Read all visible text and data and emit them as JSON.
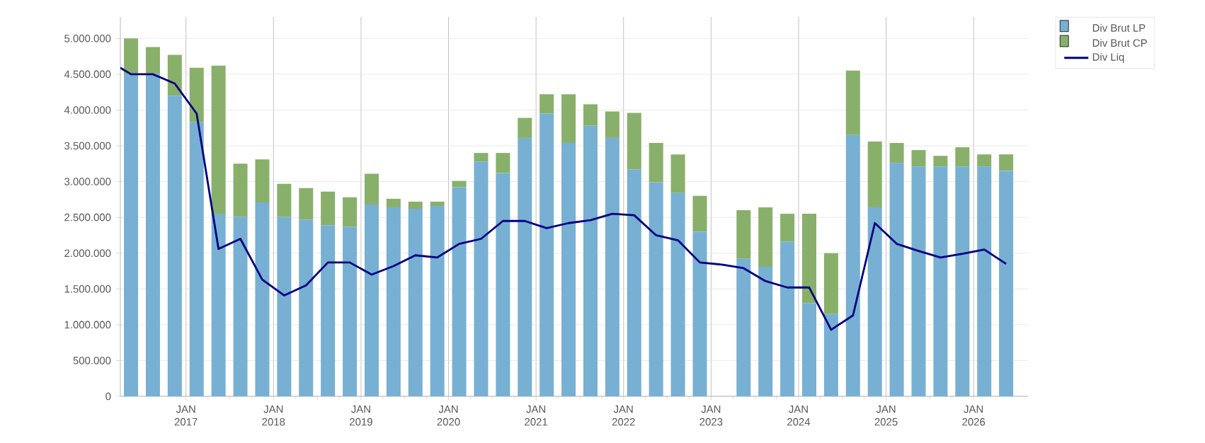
{
  "chart_data": {
    "type": "bar",
    "stacked": true,
    "grid": true,
    "legend": "top right",
    "xlim": [
      "2016-04-01",
      "2026-08-15"
    ],
    "xticks": [
      {
        "value": "2017-01-01",
        "label": "JAN 2017"
      },
      {
        "value": "2018-01-01",
        "label": "JAN 2018"
      },
      {
        "value": "2019-01-01",
        "label": "JAN 2019"
      },
      {
        "value": "2020-01-01",
        "label": "JAN 2020"
      },
      {
        "value": "2021-01-01",
        "label": "JAN 2021"
      },
      {
        "value": "2022-01-01",
        "label": "JAN 2022"
      },
      {
        "value": "2023-01-01",
        "label": "JAN 2023"
      },
      {
        "value": "2024-01-01",
        "label": "JAN 2024"
      },
      {
        "value": "2025-01-01",
        "label": "JAN 2025"
      },
      {
        "value": "2026-01-01",
        "label": "JAN 2026"
      }
    ],
    "ylim": [
      0,
      5300000
    ],
    "yticks": [
      {
        "value": 0,
        "label": "0"
      },
      {
        "value": 500000,
        "label": "500.000"
      },
      {
        "value": 1000000,
        "label": "1.000.000"
      },
      {
        "value": 1500000,
        "label": "1.500.000"
      },
      {
        "value": 2000000,
        "label": "2.000.000"
      },
      {
        "value": 2500000,
        "label": "2.500.000"
      },
      {
        "value": 3000000,
        "label": "3.000.000"
      },
      {
        "value": 3500000,
        "label": "3.500.000"
      },
      {
        "value": 4000000,
        "label": "4.000.000"
      },
      {
        "value": 4500000,
        "label": "4.500.000"
      },
      {
        "value": 5000000,
        "label": "5.000.000"
      }
    ],
    "x": [
      "2016-05-15",
      "2016-08-15",
      "2016-11-15",
      "2017-02-15",
      "2017-05-15",
      "2017-08-15",
      "2017-11-15",
      "2018-02-15",
      "2018-05-15",
      "2018-08-15",
      "2018-11-15",
      "2019-02-15",
      "2019-05-15",
      "2019-08-15",
      "2019-11-15",
      "2020-02-15",
      "2020-05-15",
      "2020-08-15",
      "2020-11-15",
      "2021-02-15",
      "2021-05-15",
      "2021-08-15",
      "2021-11-15",
      "2022-02-15",
      "2022-05-15",
      "2022-08-15",
      "2022-11-15",
      "2023-02-15",
      "2023-05-15",
      "2023-08-15",
      "2023-11-15",
      "2024-02-15",
      "2024-05-15",
      "2024-08-15",
      "2024-11-15",
      "2025-02-15",
      "2025-05-15",
      "2025-08-15",
      "2025-11-15",
      "2026-02-15",
      "2026-05-15"
    ],
    "series": [
      {
        "name": "Div Brut LP",
        "color": "#77b0d3",
        "values": [
          4500000,
          4510000,
          4200000,
          3830000,
          2550000,
          2510000,
          2710000,
          2510000,
          2470000,
          2390000,
          2370000,
          2680000,
          2640000,
          2620000,
          2660000,
          2920000,
          3280000,
          3120000,
          3610000,
          3950000,
          3540000,
          3780000,
          3610000,
          3170000,
          2990000,
          2840000,
          2300000,
          null,
          1920000,
          1810000,
          2160000,
          1300000,
          1150000,
          3650000,
          2640000,
          3260000,
          3210000,
          3210000,
          3210000,
          3210000,
          3150000
        ]
      },
      {
        "name": "Div Brut CP",
        "color": "#88b06a",
        "values": [
          500000,
          370000,
          570000,
          760000,
          2070000,
          740000,
          600000,
          460000,
          440000,
          470000,
          410000,
          430000,
          120000,
          100000,
          60000,
          90000,
          120000,
          280000,
          280000,
          270000,
          680000,
          300000,
          370000,
          790000,
          550000,
          540000,
          500000,
          null,
          680000,
          830000,
          390000,
          1250000,
          850000,
          900000,
          920000,
          280000,
          230000,
          150000,
          270000,
          170000,
          230000
        ]
      },
      {
        "name": "Div Liq",
        "type": "line",
        "color": "#000080",
        "line_style": "solid",
        "marker": "none",
        "x": [
          "2016-04-01",
          "2016-05-15",
          "2016-08-15",
          "2016-11-15",
          "2017-02-15",
          "2017-05-15",
          "2017-08-15",
          "2017-11-15",
          "2018-02-15",
          "2018-05-15",
          "2018-08-15",
          "2018-11-15",
          "2019-02-15",
          "2019-05-15",
          "2019-08-15",
          "2019-11-15",
          "2020-02-15",
          "2020-05-15",
          "2020-08-15",
          "2020-11-15",
          "2021-02-15",
          "2021-05-15",
          "2021-08-15",
          "2021-11-15",
          "2022-02-15",
          "2022-05-15",
          "2022-08-15",
          "2022-11-15",
          "2023-02-15",
          "2023-05-15",
          "2023-08-15",
          "2023-11-15",
          "2024-02-15",
          "2024-05-15",
          "2024-08-15",
          "2024-11-15",
          "2025-02-15",
          "2025-05-15",
          "2025-08-15",
          "2025-11-15",
          "2026-02-15",
          "2026-05-15"
        ],
        "values": [
          4590000,
          4500000,
          4500000,
          4370000,
          3950000,
          2060000,
          2200000,
          1630000,
          1410000,
          1550000,
          1870000,
          1870000,
          1700000,
          1820000,
          1970000,
          1940000,
          2130000,
          2200000,
          2450000,
          2450000,
          2350000,
          2420000,
          2460000,
          2550000,
          2530000,
          2250000,
          2180000,
          1870000,
          1840000,
          1790000,
          1610000,
          1520000,
          1520000,
          930000,
          1130000,
          2420000,
          2130000,
          2030000,
          1940000,
          1990000,
          2050000,
          1850000
        ]
      }
    ]
  }
}
